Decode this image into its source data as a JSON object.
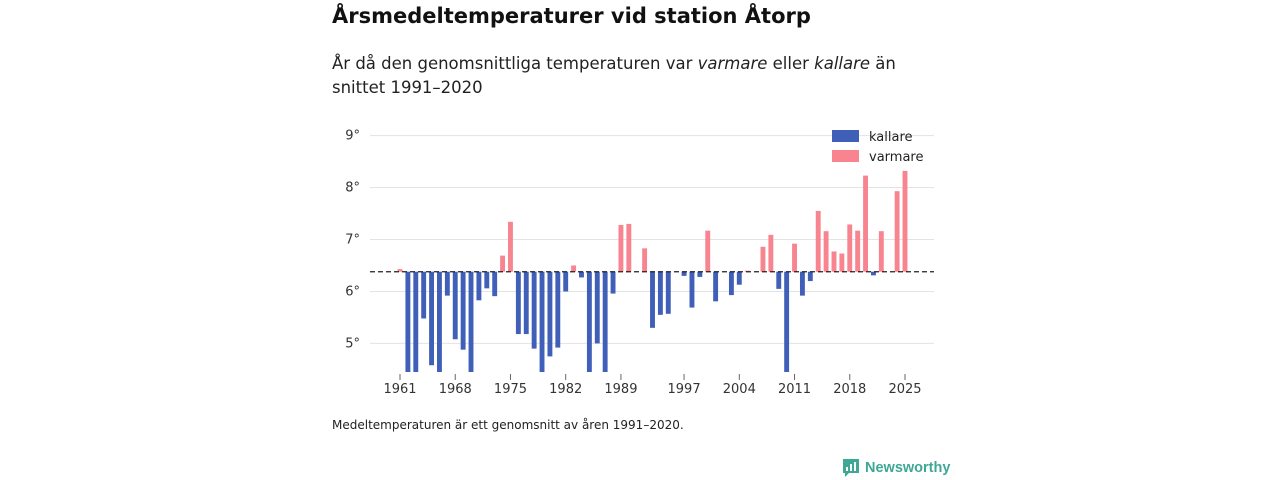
{
  "header": {
    "title": "Årsmedeltemperaturer vid station Åtorp",
    "subtitle_part1": "År då den genomsnittliga temperaturen var ",
    "subtitle_warm": "varmare",
    "subtitle_part2": " eller ",
    "subtitle_cold": "kallare",
    "subtitle_part3": " än snittet 1991–2020"
  },
  "footnote": "Medeltemperaturen är ett genomsnitt av åren 1991–2020.",
  "brand": {
    "name": "Newsworthy",
    "icon": "newsworthy-logo-icon"
  },
  "colors": {
    "kallare": "#3f5fb9",
    "varmare": "#f7848f",
    "grid": "#e3e3e3",
    "baseline": "#222222"
  },
  "chart_data": {
    "type": "bar",
    "title": "Årsmedeltemperaturer vid station Åtorp",
    "baseline": 6.38,
    "ylim": [
      4.45,
      9.3
    ],
    "yticks": [
      5,
      6,
      7,
      8,
      9
    ],
    "ytick_labels": [
      "5°",
      "6°",
      "7°",
      "8°",
      "9°"
    ],
    "xticks": [
      1961,
      1968,
      1975,
      1982,
      1989,
      1997,
      2004,
      2011,
      2018,
      2025
    ],
    "legend": [
      {
        "key": "kallare",
        "label": "kallare"
      },
      {
        "key": "varmare",
        "label": "varmare"
      }
    ],
    "legend_position": "top-right",
    "years": [
      1961,
      1962,
      1963,
      1964,
      1965,
      1966,
      1967,
      1968,
      1969,
      1970,
      1971,
      1972,
      1973,
      1974,
      1975,
      1976,
      1977,
      1978,
      1979,
      1980,
      1981,
      1982,
      1983,
      1984,
      1985,
      1986,
      1987,
      1988,
      1989,
      1990,
      1991,
      1992,
      1993,
      1994,
      1995,
      1996,
      1997,
      1998,
      1999,
      2000,
      2001,
      2002,
      2003,
      2004,
      2005,
      2006,
      2007,
      2008,
      2009,
      2010,
      2011,
      2012,
      2013,
      2014,
      2015,
      2016,
      2017,
      2018,
      2019,
      2020,
      2021,
      2022,
      2023,
      2024,
      2025
    ],
    "values": [
      6.43,
      4.45,
      4.45,
      5.48,
      4.58,
      4.45,
      5.92,
      5.08,
      4.88,
      4.45,
      5.83,
      6.06,
      5.91,
      6.69,
      7.34,
      5.18,
      5.18,
      4.9,
      4.45,
      4.75,
      4.92,
      6.0,
      6.5,
      6.27,
      4.45,
      5.0,
      4.45,
      5.96,
      7.28,
      7.3,
      null,
      6.83,
      5.3,
      5.55,
      5.57,
      null,
      6.3,
      5.69,
      6.28,
      7.17,
      5.81,
      null,
      5.93,
      6.13,
      6.4,
      null,
      6.86,
      7.09,
      6.05,
      4.45,
      6.92,
      5.92,
      6.2,
      7.55,
      7.16,
      6.77,
      6.73,
      7.29,
      7.17,
      8.23,
      6.31,
      7.16,
      null,
      7.93,
      8.32
    ]
  }
}
